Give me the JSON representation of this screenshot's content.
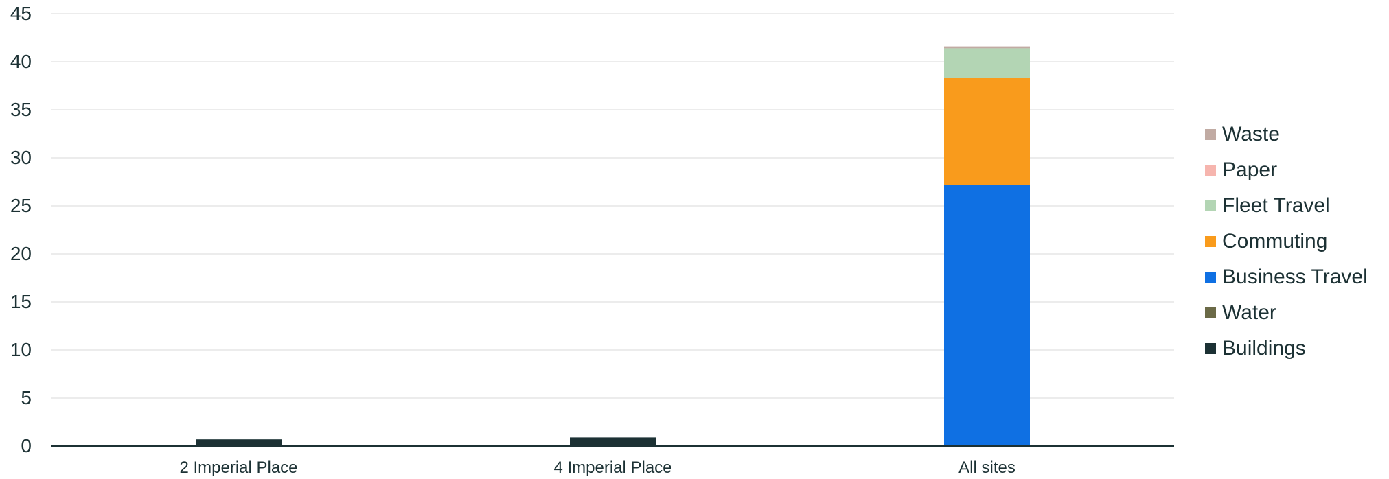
{
  "chart_data": {
    "type": "bar",
    "stacked": true,
    "categories": [
      "2 Imperial Place",
      "4 Imperial Place",
      "All sites"
    ],
    "ylim": [
      0,
      45
    ],
    "yticks": [
      0,
      5,
      10,
      15,
      20,
      25,
      30,
      35,
      40,
      45
    ],
    "grid": true,
    "legend_position": "right",
    "series": [
      {
        "name": "Buildings",
        "color": "#1c3134",
        "values": [
          0.7,
          0.9,
          0
        ]
      },
      {
        "name": "Water",
        "color": "#6b6a47",
        "values": [
          0,
          0,
          0
        ]
      },
      {
        "name": "Business Travel",
        "color": "#0f70e3",
        "values": [
          0,
          0,
          27.2
        ]
      },
      {
        "name": "Commuting",
        "color": "#f99b1c",
        "values": [
          0,
          0,
          11.1
        ]
      },
      {
        "name": "Fleet Travel",
        "color": "#b3d5b4",
        "values": [
          0,
          0,
          3.1
        ]
      },
      {
        "name": "Paper",
        "color": "#f6b5ae",
        "values": [
          0,
          0,
          0
        ]
      },
      {
        "name": "Waste",
        "color": "#c1aba3",
        "values": [
          0,
          0,
          0.2
        ]
      }
    ]
  }
}
